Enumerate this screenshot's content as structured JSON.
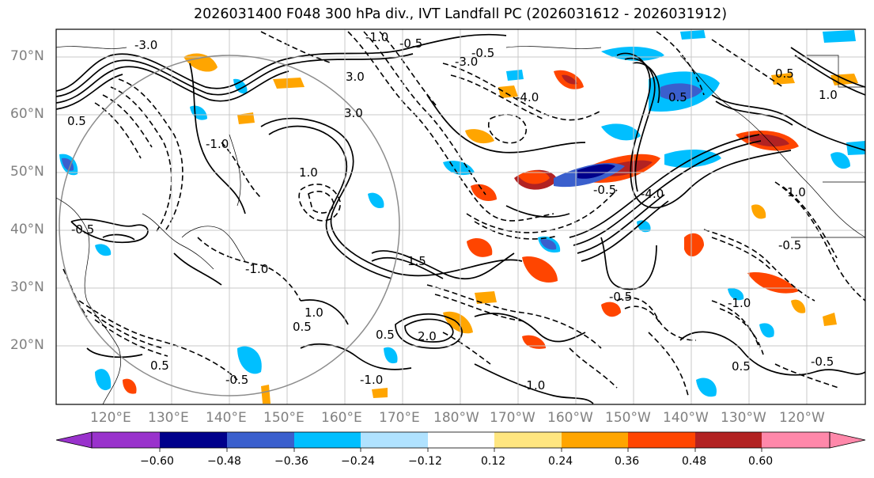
{
  "title": "2026031400 F048 300 hPa div., IVT Landfall PC (2026031612 - 2026031912)",
  "lat_labels": [
    "70°N",
    "60°N",
    "50°N",
    "40°N",
    "30°N",
    "20°N"
  ],
  "lon_labels": [
    "120°E",
    "130°E",
    "140°E",
    "150°E",
    "160°E",
    "170°E",
    "180°W",
    "170°W",
    "160°W",
    "150°W",
    "140°W",
    "130°W",
    "120°W"
  ],
  "contour_labels": [
    "-1.0",
    "-0.5",
    "-3.0",
    "3.0",
    "-1.0",
    "0.5",
    "-0.5",
    "1.0",
    "-1.0",
    "-4.0",
    "-0.5",
    "0.5",
    "-3.0",
    "0.5",
    "1.0",
    "3.0",
    "-0.5",
    "-4.0",
    "1.5",
    "2.0",
    "-0.5",
    "-1.0",
    "0.5",
    "-1.0",
    "1.0",
    "0.5",
    "0.5",
    "-0.5",
    "-1.0",
    "0.5",
    "-0.5",
    "1.0",
    "-0.5"
  ],
  "colorbar": {
    "ticks": [
      "−0.60",
      "−0.48",
      "−0.36",
      "−0.24",
      "−0.12",
      "0.12",
      "0.24",
      "0.36",
      "0.48",
      "0.60"
    ],
    "colors": [
      "#9932cc",
      "#00008b",
      "#3a5fcd",
      "#00bfff",
      "#b0e2ff",
      "#ffffff",
      "#ffe680",
      "#ffa500",
      "#ff4500",
      "#b22222",
      "#ff88aa"
    ]
  }
}
